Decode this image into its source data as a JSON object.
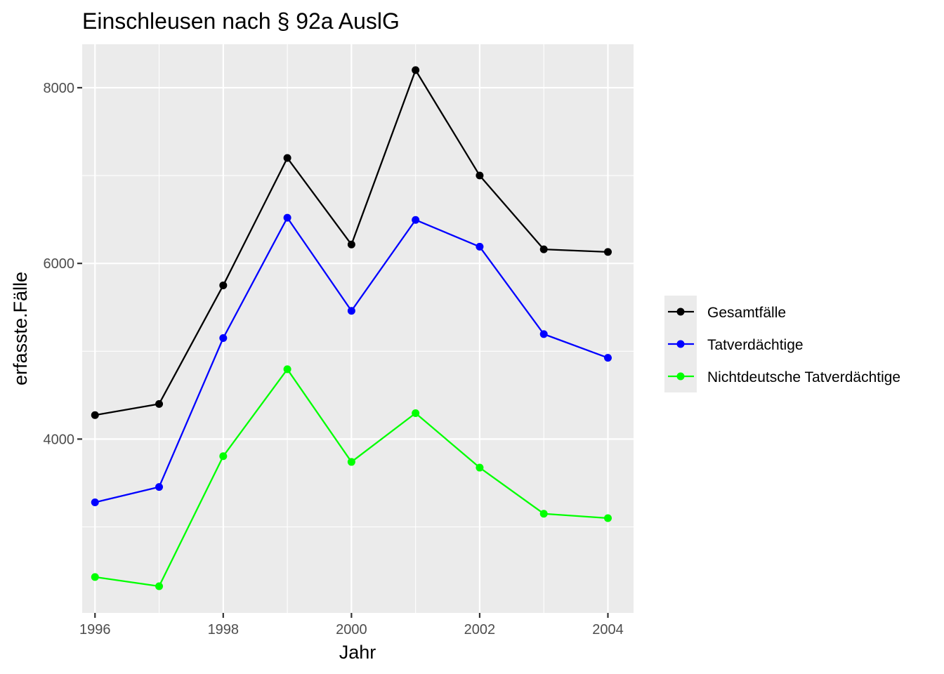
{
  "chart_data": {
    "type": "line",
    "title": "Einschleusen nach § 92a AuslG",
    "xlabel": "Jahr",
    "ylabel": "erfasste.Fälle",
    "x": [
      1996,
      1997,
      1998,
      1999,
      2000,
      2001,
      2002,
      2003,
      2004
    ],
    "x_ticks": [
      "1996",
      "1998",
      "2000",
      "2002",
      "2004"
    ],
    "y_ticks": [
      "4000",
      "6000",
      "8000"
    ],
    "xlim": [
      1995.8,
      2004.4
    ],
    "ylim": [
      2021,
      8495
    ],
    "grid": true,
    "legend_position": "right",
    "series": [
      {
        "name": "Gesamtfälle",
        "color": "#000000",
        "values": [
          4273,
          4400,
          5750,
          7200,
          6215,
          8200,
          7000,
          6160,
          6130
        ]
      },
      {
        "name": "Tatverdächtige",
        "color": "#0000ff",
        "values": [
          3280,
          3455,
          5150,
          6520,
          5460,
          6495,
          6190,
          5195,
          4925
        ]
      },
      {
        "name": "Nichtdeutsche Tatverdächtige",
        "color": "#00ff00",
        "values": [
          2430,
          2325,
          3805,
          4795,
          3740,
          4295,
          3675,
          3150,
          3100
        ]
      }
    ]
  }
}
